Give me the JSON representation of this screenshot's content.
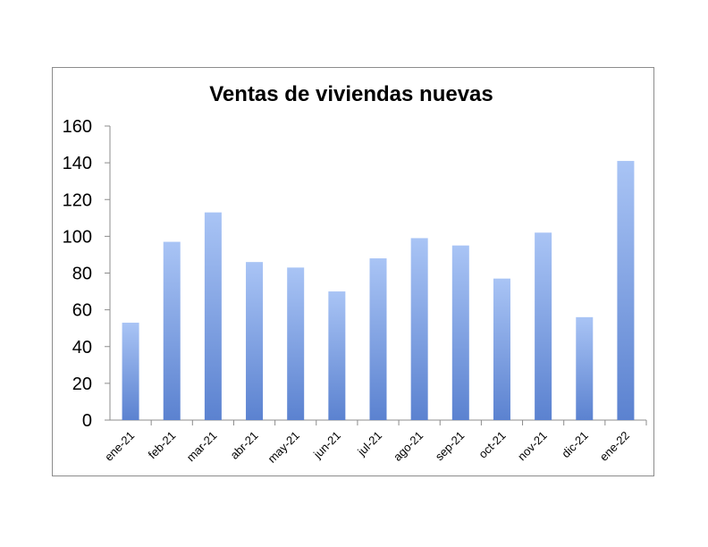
{
  "chart_data": {
    "type": "bar",
    "title": "Ventas de viviendas nuevas",
    "xlabel": "",
    "ylabel": "",
    "categories": [
      "ene-21",
      "feb-21",
      "mar-21",
      "abr-21",
      "may-21",
      "jun-21",
      "jul-21",
      "ago-21",
      "sep-21",
      "oct-21",
      "nov-21",
      "dic-21",
      "ene-22"
    ],
    "values": [
      53,
      97,
      113,
      86,
      83,
      70,
      88,
      99,
      95,
      77,
      102,
      56,
      141
    ],
    "ylim": [
      0,
      160
    ],
    "yticks": [
      "0",
      "20",
      "40",
      "60",
      "80",
      "100",
      "120",
      "140",
      "160"
    ],
    "grid": false,
    "legend": "none",
    "colors": {
      "bar_top": "#a9c4f5",
      "bar_bottom": "#5b82d0",
      "axis": "#8c8c8c",
      "frame": "#8c8c8c"
    }
  }
}
